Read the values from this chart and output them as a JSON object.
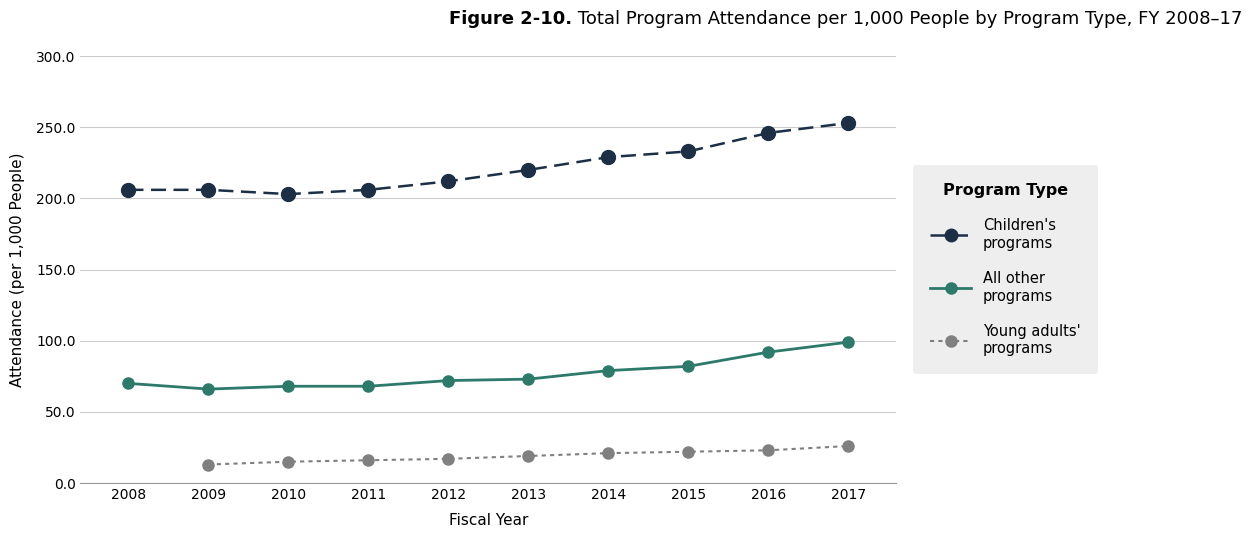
{
  "title_bold": "Figure 2-10.",
  "title_regular": " Total Program Attendance per 1,000 People by Program Type, FY 2008–17",
  "xlabel": "Fiscal Year",
  "ylabel": "Attendance (per 1,000 People)",
  "years": [
    2008,
    2009,
    2010,
    2011,
    2012,
    2013,
    2014,
    2015,
    2016,
    2017
  ],
  "children_programs": [
    206.0,
    206.0,
    203.0,
    206.0,
    212.0,
    220.0,
    229.0,
    233.0,
    246.0,
    253.0
  ],
  "all_other_programs": [
    70.0,
    66.0,
    68.0,
    68.0,
    72.0,
    73.0,
    79.0,
    82.0,
    92.0,
    99.0
  ],
  "young_adults_programs": [
    null,
    13.0,
    15.0,
    16.0,
    17.0,
    19.0,
    21.0,
    22.0,
    23.0,
    26.0
  ],
  "children_color": "#1c2f45",
  "all_other_color": "#2d7a6b",
  "young_adults_color": "#808080",
  "legend_bg_color": "#eeeeee",
  "ylim": [
    0.0,
    300.0
  ],
  "yticks": [
    0.0,
    50.0,
    100.0,
    150.0,
    200.0,
    250.0,
    300.0
  ],
  "title_fontsize": 13,
  "axis_label_fontsize": 11,
  "tick_fontsize": 10,
  "legend_fontsize": 10.5
}
